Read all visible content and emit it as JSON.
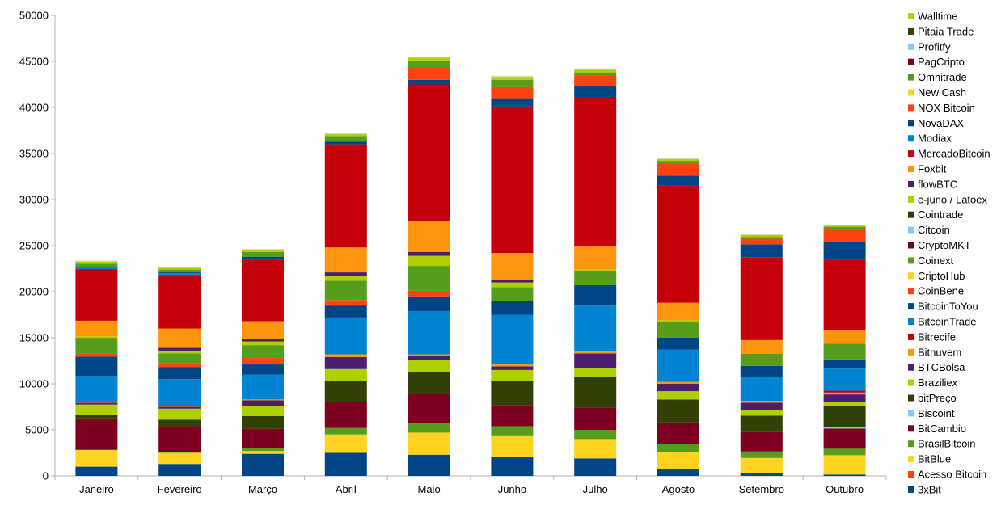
{
  "chart_data": {
    "type": "bar",
    "stacked": true,
    "title": "",
    "xlabel": "",
    "ylabel": "",
    "ylim": [
      0,
      50000
    ],
    "yticks": [
      0,
      5000,
      10000,
      15000,
      20000,
      25000,
      30000,
      35000,
      40000,
      45000,
      50000
    ],
    "grid": false,
    "legend_position": "right",
    "categories": [
      "Janeiro",
      "Fevereiro",
      "Março",
      "Abril",
      "Maio",
      "Junho",
      "Julho",
      "Agosto",
      "Setembro",
      "Outubro"
    ],
    "series": [
      {
        "name": "3xBit",
        "color": "#004586",
        "values": [
          1000,
          1300,
          2400,
          2500,
          2300,
          2100,
          1900,
          800,
          350,
          150
        ]
      },
      {
        "name": "Acesso Bitcoin",
        "color": "#ff420e",
        "values": [
          0,
          0,
          0,
          0,
          0,
          0,
          0,
          0,
          0,
          0
        ]
      },
      {
        "name": "BitBlue",
        "color": "#ffd320",
        "values": [
          1800,
          1200,
          300,
          2000,
          2400,
          2300,
          2100,
          1800,
          1600,
          2100
        ]
      },
      {
        "name": "BrasilBitcoin",
        "color": "#579d1c",
        "values": [
          50,
          100,
          300,
          700,
          1000,
          1000,
          1000,
          900,
          700,
          700
        ]
      },
      {
        "name": "BitCambio",
        "color": "#7e0021",
        "values": [
          3400,
          2800,
          2100,
          2800,
          3200,
          2300,
          2400,
          2300,
          2100,
          2200
        ]
      },
      {
        "name": "Biscoint",
        "color": "#83caff",
        "values": [
          0,
          0,
          0,
          0,
          0,
          0,
          0,
          0,
          0,
          200
        ]
      },
      {
        "name": "bitPreço",
        "color": "#314004",
        "values": [
          400,
          700,
          1400,
          2300,
          2400,
          2600,
          3400,
          2500,
          1800,
          2200
        ]
      },
      {
        "name": "Braziliex",
        "color": "#aecf00",
        "values": [
          1100,
          1200,
          1100,
          1300,
          1300,
          1200,
          900,
          900,
          600,
          500
        ]
      },
      {
        "name": "BTCBolsa",
        "color": "#4b1f6f",
        "values": [
          200,
          200,
          600,
          1300,
          400,
          400,
          1600,
          800,
          800,
          800
        ]
      },
      {
        "name": "Bitnuvem",
        "color": "#ff950e",
        "values": [
          100,
          100,
          100,
          300,
          200,
          200,
          200,
          200,
          200,
          200
        ]
      },
      {
        "name": "Bitrecife",
        "color": "#c5000b",
        "values": [
          0,
          0,
          0,
          0,
          0,
          0,
          0,
          0,
          0,
          200
        ]
      },
      {
        "name": "BitcoinTrade",
        "color": "#0084d1",
        "values": [
          2800,
          2900,
          2700,
          4000,
          4700,
          5400,
          5000,
          3500,
          2600,
          2400
        ]
      },
      {
        "name": "BitcoinToYou",
        "color": "#004586",
        "values": [
          2100,
          1300,
          1100,
          1300,
          1600,
          1500,
          2200,
          1300,
          1200,
          1000
        ]
      },
      {
        "name": "CoinBene",
        "color": "#ff420e",
        "values": [
          300,
          400,
          700,
          600,
          600,
          0,
          0,
          0,
          0,
          0
        ]
      },
      {
        "name": "CriptoHub",
        "color": "#ffd320",
        "values": [
          0,
          0,
          0,
          0,
          0,
          0,
          0,
          0,
          0,
          0
        ]
      },
      {
        "name": "Coinext",
        "color": "#579d1c",
        "values": [
          1600,
          1100,
          1400,
          2100,
          2700,
          1500,
          1500,
          1700,
          1300,
          1700
        ]
      },
      {
        "name": "CryptoMKT",
        "color": "#7e0021",
        "values": [
          0,
          0,
          0,
          0,
          0,
          0,
          0,
          0,
          0,
          0
        ]
      },
      {
        "name": "Citcoin",
        "color": "#83caff",
        "values": [
          0,
          0,
          0,
          0,
          0,
          0,
          0,
          0,
          0,
          0
        ]
      },
      {
        "name": "Cointrade",
        "color": "#314004",
        "values": [
          100,
          0,
          0,
          0,
          0,
          0,
          0,
          0,
          0,
          0
        ]
      },
      {
        "name": "e-juno / Latoex",
        "color": "#aecf00",
        "values": [
          200,
          300,
          400,
          500,
          1100,
          500,
          200,
          200,
          0,
          0
        ]
      },
      {
        "name": "flowBTC",
        "color": "#4b1f6f",
        "values": [
          0,
          300,
          300,
          400,
          400,
          300,
          0,
          0,
          0,
          0
        ]
      },
      {
        "name": "Foxbit",
        "color": "#ff950e",
        "values": [
          1700,
          2100,
          1900,
          2700,
          3400,
          2900,
          2500,
          1900,
          1500,
          1500
        ]
      },
      {
        "name": "MercadoBitcoin",
        "color": "#c5000b",
        "values": [
          5600,
          5800,
          6700,
          11200,
          14800,
          15900,
          16200,
          12700,
          9000,
          7600
        ]
      },
      {
        "name": "Modiax",
        "color": "#0084d1",
        "values": [
          200,
          200,
          0,
          0,
          0,
          0,
          0,
          0,
          0,
          0
        ]
      },
      {
        "name": "NovaDAX",
        "color": "#004586",
        "values": [
          100,
          100,
          300,
          300,
          500,
          900,
          1300,
          1100,
          1400,
          1900
        ]
      },
      {
        "name": "NOX Bitcoin",
        "color": "#ff420e",
        "values": [
          0,
          0,
          0,
          0,
          1300,
          1200,
          1100,
          1300,
          600,
          1400
        ]
      },
      {
        "name": "New Cash",
        "color": "#ffd320",
        "values": [
          0,
          0,
          0,
          0,
          0,
          0,
          0,
          0,
          0,
          0
        ]
      },
      {
        "name": "Omnitrade",
        "color": "#579d1c",
        "values": [
          300,
          300,
          500,
          600,
          800,
          800,
          300,
          300,
          200,
          300
        ]
      },
      {
        "name": "PagCripto",
        "color": "#7e0021",
        "values": [
          0,
          0,
          0,
          0,
          0,
          0,
          0,
          0,
          0,
          0
        ]
      },
      {
        "name": "Profitfy",
        "color": "#83caff",
        "values": [
          0,
          0,
          0,
          0,
          0,
          0,
          0,
          0,
          0,
          0
        ]
      },
      {
        "name": "Pitaia Trade",
        "color": "#314004",
        "values": [
          0,
          0,
          0,
          0,
          0,
          0,
          0,
          0,
          0,
          0
        ]
      },
      {
        "name": "Walltime",
        "color": "#aecf00",
        "values": [
          200,
          200,
          200,
          200,
          300,
          300,
          300,
          200,
          200,
          100
        ]
      }
    ]
  }
}
